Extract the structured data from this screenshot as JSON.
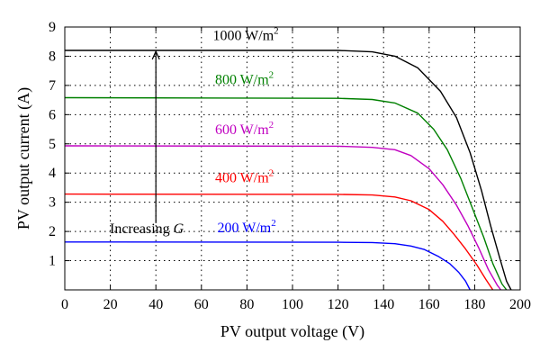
{
  "chart_data": {
    "type": "line",
    "title": "",
    "xlabel": "PV output voltage (V)",
    "ylabel": "PV output current (A)",
    "xlim": [
      0,
      200
    ],
    "ylim": [
      0,
      9
    ],
    "xticks": [
      0,
      20,
      40,
      60,
      80,
      100,
      120,
      140,
      160,
      180,
      200
    ],
    "yticks": [
      1,
      2,
      3,
      4,
      5,
      6,
      7,
      8,
      9
    ],
    "grid": true,
    "series": [
      {
        "name": "1000 W/m2",
        "color": "#000000",
        "points": [
          [
            0,
            8.2
          ],
          [
            120,
            8.2
          ],
          [
            135,
            8.15
          ],
          [
            145,
            8.0
          ],
          [
            155,
            7.6
          ],
          [
            165,
            6.8
          ],
          [
            172,
            5.9
          ],
          [
            178,
            4.7
          ],
          [
            183,
            3.4
          ],
          [
            187,
            2.2
          ],
          [
            191,
            1.1
          ],
          [
            194,
            0.3
          ],
          [
            196,
            0
          ]
        ]
      },
      {
        "name": "800 W/m2",
        "color": "#008000",
        "points": [
          [
            0,
            6.58
          ],
          [
            120,
            6.56
          ],
          [
            135,
            6.52
          ],
          [
            145,
            6.4
          ],
          [
            155,
            6.05
          ],
          [
            162,
            5.5
          ],
          [
            168,
            4.8
          ],
          [
            174,
            3.8
          ],
          [
            179,
            2.8
          ],
          [
            184,
            1.8
          ],
          [
            188,
            0.9
          ],
          [
            192,
            0.2
          ],
          [
            194,
            0
          ]
        ]
      },
      {
        "name": "600 W/m2",
        "color": "#c000c0",
        "points": [
          [
            0,
            4.93
          ],
          [
            120,
            4.92
          ],
          [
            135,
            4.88
          ],
          [
            145,
            4.8
          ],
          [
            152,
            4.6
          ],
          [
            160,
            4.15
          ],
          [
            166,
            3.6
          ],
          [
            172,
            2.9
          ],
          [
            177,
            2.2
          ],
          [
            182,
            1.4
          ],
          [
            186,
            0.7
          ],
          [
            190,
            0.15
          ],
          [
            191.5,
            0
          ]
        ]
      },
      {
        "name": "400 W/m2",
        "color": "#ff0000",
        "points": [
          [
            0,
            3.28
          ],
          [
            120,
            3.27
          ],
          [
            135,
            3.25
          ],
          [
            145,
            3.18
          ],
          [
            152,
            3.05
          ],
          [
            160,
            2.75
          ],
          [
            166,
            2.35
          ],
          [
            171,
            1.9
          ],
          [
            176,
            1.4
          ],
          [
            181,
            0.85
          ],
          [
            185,
            0.35
          ],
          [
            188,
            0
          ]
        ]
      },
      {
        "name": "200 W/m2",
        "color": "#0000ff",
        "points": [
          [
            0,
            1.64
          ],
          [
            120,
            1.63
          ],
          [
            135,
            1.62
          ],
          [
            145,
            1.58
          ],
          [
            152,
            1.5
          ],
          [
            158,
            1.38
          ],
          [
            164,
            1.15
          ],
          [
            169,
            0.9
          ],
          [
            173,
            0.6
          ],
          [
            176,
            0.3
          ],
          [
            178,
            0
          ]
        ]
      }
    ],
    "annotations": [
      {
        "text_main": "1000 W/m",
        "sup": "2",
        "color": "#000000",
        "x": 65,
        "y": 8.55
      },
      {
        "text_main": "800 W/m",
        "sup": "2",
        "color": "#008000",
        "x": 66,
        "y": 7.05
      },
      {
        "text_main": "600 W/m",
        "sup": "2",
        "color": "#c000c0",
        "x": 66,
        "y": 5.33
      },
      {
        "text_main": "400 W/m",
        "sup": "2",
        "color": "#ff0000",
        "x": 66,
        "y": 3.68
      },
      {
        "text_main": "200 W/m",
        "sup": "2",
        "color": "#0000ff",
        "x": 67,
        "y": 1.98
      }
    ],
    "arrow": {
      "label": "Increasing",
      "label_var": "G",
      "x": 40,
      "y_from": 2.1,
      "y_to": 8.2
    }
  }
}
